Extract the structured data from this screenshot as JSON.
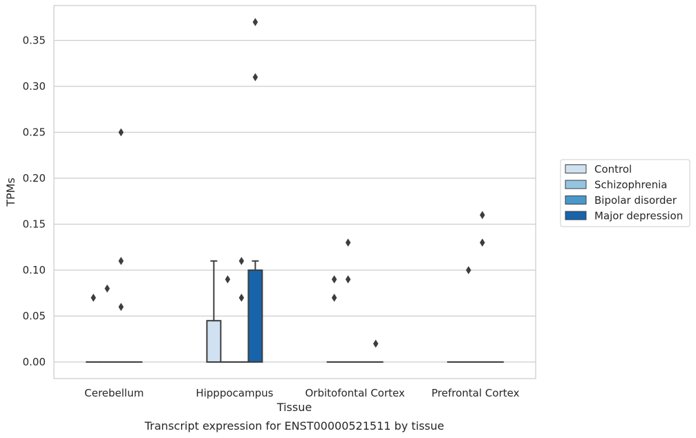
{
  "caption": "Transcript expression for ENST00000521511 by tissue",
  "chart_data": {
    "type": "box",
    "xlabel": "Tissue",
    "ylabel": "TPMs",
    "ylim": [
      -0.018,
      0.388
    ],
    "yticks": [
      0.0,
      0.05,
      0.1,
      0.15,
      0.2,
      0.25,
      0.3,
      0.35
    ],
    "ytick_labels": [
      "0.00",
      "0.05",
      "0.10",
      "0.15",
      "0.20",
      "0.25",
      "0.30",
      "0.35"
    ],
    "grid": "horizontal",
    "legend_position": "right",
    "categories": [
      "Cerebellum",
      "Hipppocampus",
      "Orbitofontal Cortex",
      "Prefrontal Cortex"
    ],
    "series": [
      {
        "name": "Control",
        "color": "#d0e1f2",
        "boxes": [
          {
            "q1": 0,
            "median": 0,
            "q3": 0,
            "whislo": 0,
            "whishi": 0,
            "fliers": [
              0.07
            ]
          },
          {
            "q1": 0,
            "median": 0,
            "q3": 0.045,
            "whislo": 0,
            "whishi": 0.11,
            "fliers": []
          },
          {
            "q1": 0,
            "median": 0,
            "q3": 0,
            "whislo": 0,
            "whishi": 0,
            "fliers": [
              0.09,
              0.07
            ]
          },
          {
            "q1": 0,
            "median": 0,
            "q3": 0,
            "whislo": 0,
            "whishi": 0,
            "fliers": []
          }
        ]
      },
      {
        "name": "Schizophrenia",
        "color": "#94c4df",
        "boxes": [
          {
            "q1": 0,
            "median": 0,
            "q3": 0,
            "whislo": 0,
            "whishi": 0,
            "fliers": [
              0.08
            ]
          },
          {
            "q1": 0,
            "median": 0,
            "q3": 0,
            "whislo": 0,
            "whishi": 0,
            "fliers": [
              0.09
            ]
          },
          {
            "q1": 0,
            "median": 0,
            "q3": 0,
            "whislo": 0,
            "whishi": 0,
            "fliers": [
              0.13,
              0.09
            ]
          },
          {
            "q1": 0,
            "median": 0,
            "q3": 0,
            "whislo": 0,
            "whishi": 0,
            "fliers": [
              0.1
            ]
          }
        ]
      },
      {
        "name": "Bipolar disorder",
        "color": "#4a98c9",
        "boxes": [
          {
            "q1": 0,
            "median": 0,
            "q3": 0,
            "whislo": 0,
            "whishi": 0,
            "fliers": [
              0.25,
              0.11,
              0.06
            ]
          },
          {
            "q1": 0,
            "median": 0,
            "q3": 0,
            "whislo": 0,
            "whishi": 0,
            "fliers": [
              0.11,
              0.07
            ]
          },
          {
            "q1": 0,
            "median": 0,
            "q3": 0,
            "whislo": 0,
            "whishi": 0,
            "fliers": []
          },
          {
            "q1": 0,
            "median": 0,
            "q3": 0,
            "whislo": 0,
            "whishi": 0,
            "fliers": [
              0.16,
              0.13
            ]
          }
        ]
      },
      {
        "name": "Major depression",
        "color": "#1764ab",
        "boxes": [
          {
            "q1": 0,
            "median": 0,
            "q3": 0,
            "whislo": 0,
            "whishi": 0,
            "fliers": []
          },
          {
            "q1": 0,
            "median": 0,
            "q3": 0.1,
            "whislo": 0,
            "whishi": 0.11,
            "fliers": [
              0.37,
              0.31
            ]
          },
          {
            "q1": 0,
            "median": 0,
            "q3": 0,
            "whislo": 0,
            "whishi": 0,
            "fliers": [
              0.02
            ]
          },
          {
            "q1": 0,
            "median": 0,
            "q3": 0,
            "whislo": 0,
            "whishi": 0,
            "fliers": []
          }
        ]
      }
    ]
  }
}
